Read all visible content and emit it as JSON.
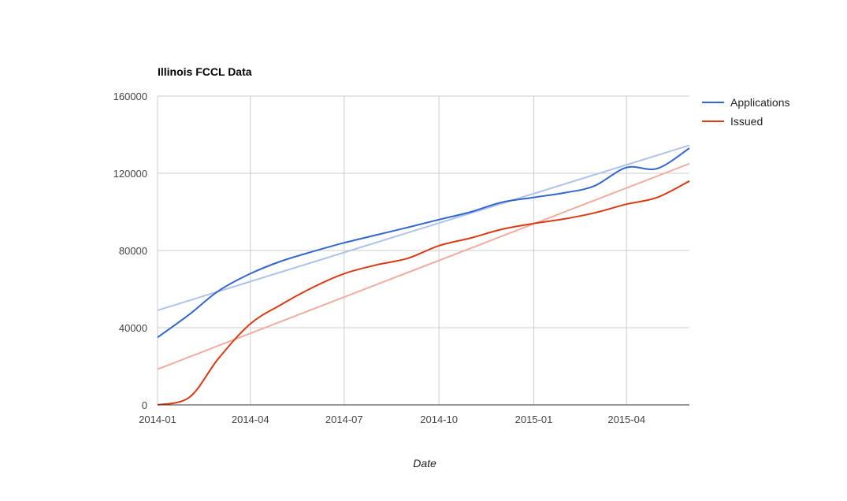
{
  "chart_data": {
    "type": "line",
    "title": "Illinois FCCL Data",
    "xlabel": "Date",
    "ylabel": "",
    "x_axis_type": "date",
    "xlim": [
      "2014-01-01",
      "2015-06-01"
    ],
    "ylim": [
      0,
      160000
    ],
    "x_ticks": [
      "2014-01",
      "2014-04",
      "2014-07",
      "2014-10",
      "2015-01",
      "2015-04"
    ],
    "y_ticks": [
      "0",
      "40000",
      "80000",
      "120000",
      "160000"
    ],
    "grid": true,
    "legend_position": "right",
    "x": [
      "2014-01-01",
      "2014-02-01",
      "2014-03-01",
      "2014-04-01",
      "2014-05-01",
      "2014-06-01",
      "2014-07-01",
      "2014-08-01",
      "2014-09-01",
      "2014-10-01",
      "2014-11-01",
      "2014-12-01",
      "2015-01-01",
      "2015-02-01",
      "2015-03-01",
      "2015-04-01",
      "2015-05-01",
      "2015-06-01"
    ],
    "series": [
      {
        "name": "Applications",
        "color": "#3366cc",
        "values": [
          35000,
          47000,
          59000,
          68000,
          74500,
          79500,
          84000,
          88000,
          92000,
          96000,
          100000,
          105000,
          107500,
          110000,
          113500,
          123000,
          122500,
          133000
        ]
      },
      {
        "name": "Issued",
        "color": "#dc3912",
        "values": [
          0,
          4000,
          24000,
          42000,
          52000,
          61000,
          68000,
          72500,
          76000,
          82500,
          86500,
          91000,
          94000,
          96500,
          99500,
          104000,
          107500,
          116000
        ]
      }
    ],
    "trendlines": [
      {
        "series": "Applications",
        "color": "#aec3ea",
        "start": 49000,
        "end": 134500
      },
      {
        "series": "Issued",
        "color": "#f0ac9d",
        "start": 18500,
        "end": 125000
      }
    ]
  }
}
